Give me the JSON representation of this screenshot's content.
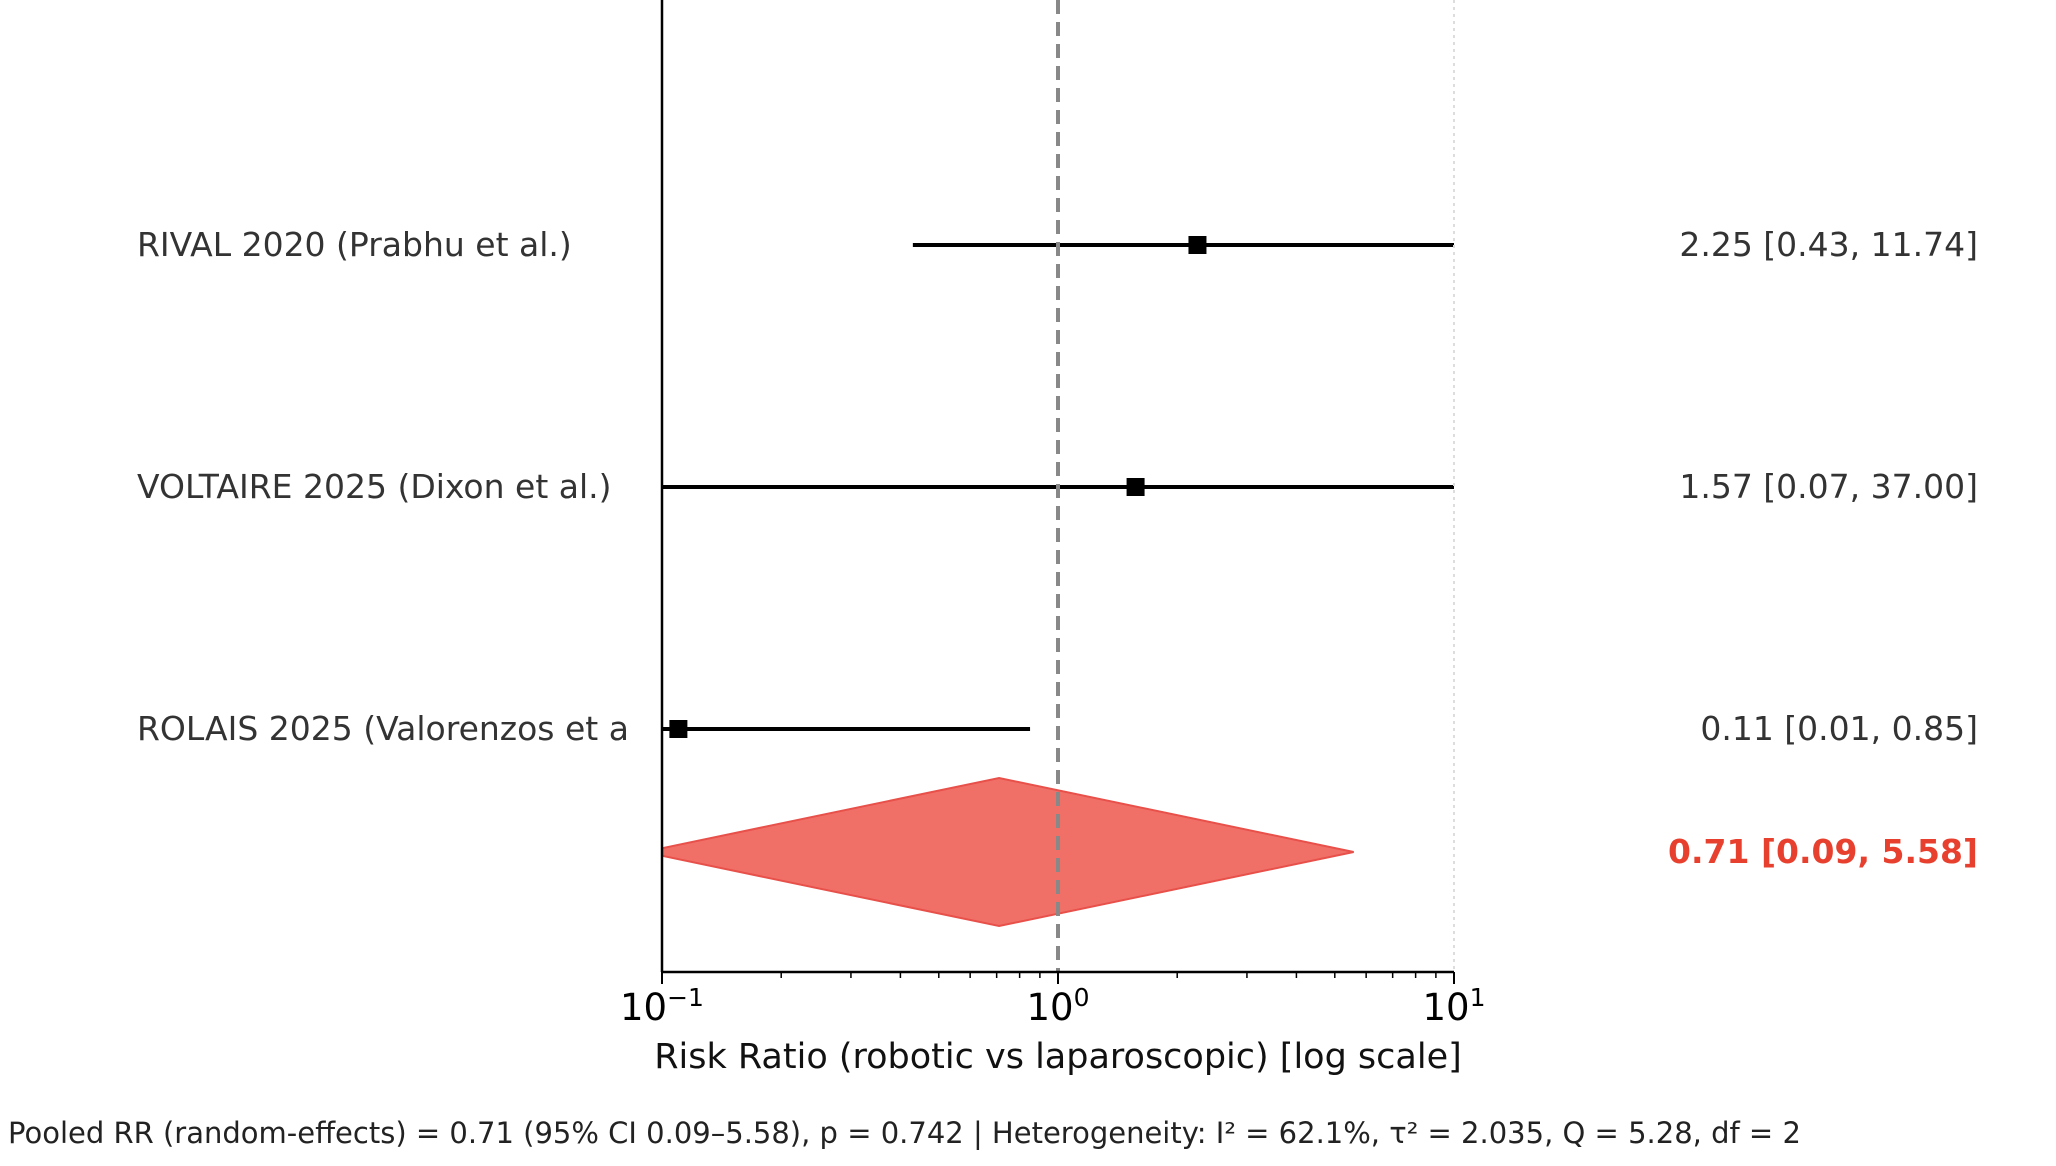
{
  "chart_data": {
    "type": "forest",
    "xlabel": "Risk Ratio (robotic vs laparoscopic) [log scale]",
    "xscale": "log",
    "xlim": [
      0.1,
      10
    ],
    "reference_line": 1,
    "ticks": [
      {
        "value": 0.1,
        "base": "10",
        "exp": "−1"
      },
      {
        "value": 1,
        "base": "10",
        "exp": "0"
      },
      {
        "value": 10,
        "base": "10",
        "exp": "1"
      }
    ],
    "studies": [
      {
        "label": "RIVAL 2020 (Prabhu et al.)",
        "rr": 2.25,
        "lo": 0.43,
        "hi": 11.74,
        "ci_text": "2.25 [0.43, 11.74]"
      },
      {
        "label": "VOLTAIRE 2025 (Dixon et al.)",
        "rr": 1.57,
        "lo": 0.07,
        "hi": 37.0,
        "ci_text": "1.57 [0.07, 37.00]"
      },
      {
        "label": "ROLAIS 2025 (Valorenzos et a",
        "rr": 0.11,
        "lo": 0.01,
        "hi": 0.85,
        "ci_text": "0.11 [0.01, 0.85]"
      }
    ],
    "pooled": {
      "rr": 0.71,
      "lo": 0.09,
      "hi": 5.58,
      "ci_text": "0.71 [0.09, 5.58]"
    },
    "footer": "Pooled RR (random-effects) = 0.71 (95% CI 0.09–5.58), p = 0.742 | Heterogeneity: I² = 62.1%, τ² = 2.035, Q = 5.28, df = 2",
    "colors": {
      "pooled": "#f07068",
      "pooled_edge": "#e8504a",
      "pooled_text": "#e8402e",
      "marker": "#000000",
      "refline": "#888888"
    }
  }
}
